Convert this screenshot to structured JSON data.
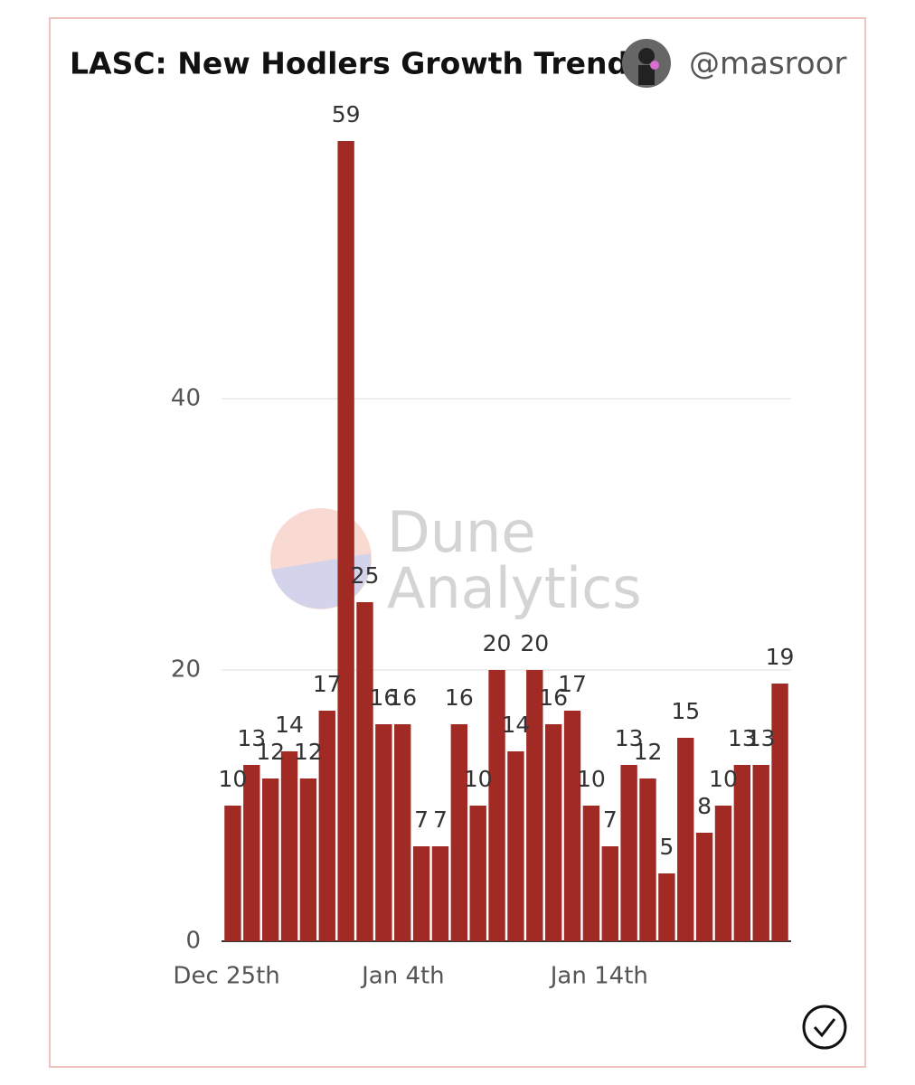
{
  "chart_data": {
    "type": "bar",
    "title": "LASC: New Hodlers Growth Trend",
    "author": "@masroor",
    "watermark": [
      "Dune",
      "Analytics"
    ],
    "categories": [
      "Dec 25th",
      null,
      null,
      null,
      null,
      null,
      null,
      null,
      null,
      null,
      "Jan 4th",
      null,
      null,
      null,
      null,
      null,
      null,
      null,
      null,
      null,
      "Jan 14th",
      null,
      null,
      null,
      null,
      null,
      null,
      null,
      null,
      null
    ],
    "values": [
      10,
      13,
      12,
      14,
      12,
      17,
      59,
      25,
      16,
      16,
      7,
      7,
      16,
      10,
      20,
      14,
      20,
      16,
      17,
      10,
      7,
      13,
      12,
      5,
      15,
      8,
      10,
      13,
      13,
      19
    ],
    "color": "#a12a25",
    "ylim": [
      0,
      60
    ],
    "yticks": [
      0,
      20,
      40
    ],
    "grid": true
  }
}
